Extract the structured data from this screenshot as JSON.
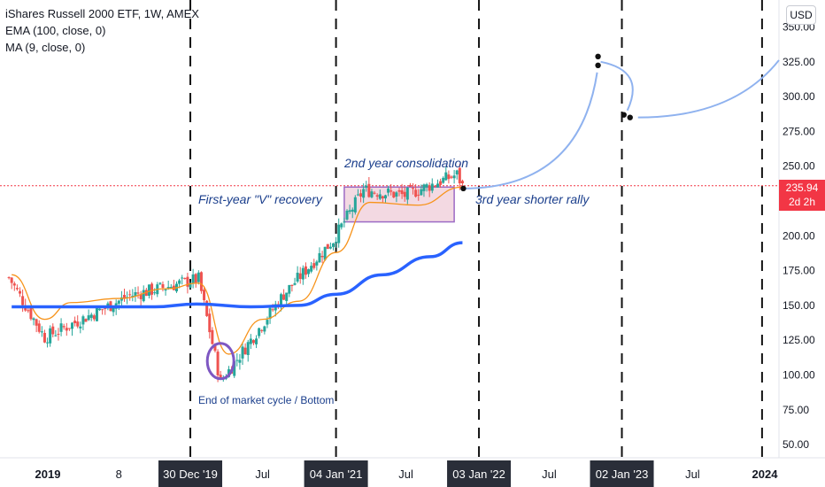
{
  "header": {
    "symbol_line": "iShares Russell 2000 ETF, 1W, AMEX",
    "indicator_1": "EMA (100, close, 0)",
    "indicator_2": "MA (9, close, 0)",
    "currency": "USD"
  },
  "price_tag": {
    "price": "235.94",
    "countdown": "2d 2h",
    "color": "#f23645"
  },
  "annotations": {
    "v_recovery": "First-year \"V\" recovery",
    "consolidation": "2nd year consolidation",
    "shorter_rally": "3rd year shorter rally",
    "bottom": "End of market cycle / Bottom"
  },
  "colors": {
    "up": "#26a69a",
    "down": "#ef5350",
    "ema": "#2962ff",
    "ma": "#f7931a",
    "projection": "#8fb2ef",
    "annotation": "#1a3e8c",
    "circle": "#7e57c2",
    "box_fill": "#f3d9e2",
    "box_stroke": "#9c6ac4"
  },
  "chart_data": {
    "type": "candlestick",
    "title": "iShares Russell 2000 ETF, 1W, AMEX",
    "ylim": [
      40,
      355
    ],
    "y_ticks": [
      50,
      75,
      100,
      125,
      150,
      175,
      200,
      225,
      250,
      275,
      300,
      325,
      350
    ],
    "y_tick_labels": [
      "50.00",
      "75.00",
      "100.00",
      "125.00",
      "150.00",
      "175.00",
      "200.00",
      "225.00",
      "250.00",
      "275.00",
      "300.00",
      "325.00",
      "350.00"
    ],
    "x_tick_labels": [
      "2019",
      "8",
      "30 Dec '19",
      "Jul",
      "04 Jan '21",
      "Jul",
      "03 Jan '22",
      "Jul",
      "02 Jan '23",
      "Jul",
      "2024"
    ],
    "x_tick_dates": [
      "2019-01-01",
      "2019-07-01",
      "2019-12-30",
      "2020-07-01",
      "2021-01-04",
      "2021-07-01",
      "2022-01-03",
      "2022-07-01",
      "2023-01-02",
      "2023-07-01",
      "2024-01-01"
    ],
    "highlighted_x_labels": [
      "30 Dec '19",
      "04 Jan '21",
      "03 Jan '22",
      "02 Jan '23"
    ],
    "last_price": 235.94,
    "key_prices": [
      {
        "date": "2018-12-24",
        "price": 127
      },
      {
        "date": "2019-07-29",
        "price": 157
      },
      {
        "date": "2020-01-20",
        "price": 169
      },
      {
        "date": "2020-03-16",
        "price": 95
      },
      {
        "date": "2020-08-24",
        "price": 158
      },
      {
        "date": "2020-12-28",
        "price": 197
      },
      {
        "date": "2021-03-15",
        "price": 233
      },
      {
        "date": "2021-06-28",
        "price": 229
      },
      {
        "date": "2021-11-08",
        "price": 244
      },
      {
        "date": "2021-11-22",
        "price": 235.94
      }
    ],
    "series": [
      {
        "name": "EMA (100, close, 0)",
        "values": [
          {
            "date": "2018-10-01",
            "y": 149
          },
          {
            "date": "2019-04-01",
            "y": 149
          },
          {
            "date": "2019-10-01",
            "y": 149
          },
          {
            "date": "2020-01-15",
            "y": 151
          },
          {
            "date": "2020-06-01",
            "y": 149
          },
          {
            "date": "2020-10-01",
            "y": 150
          },
          {
            "date": "2021-01-04",
            "y": 158
          },
          {
            "date": "2021-05-01",
            "y": 172
          },
          {
            "date": "2021-09-01",
            "y": 185
          },
          {
            "date": "2021-11-22",
            "y": 195
          }
        ]
      },
      {
        "name": "MA (9, close, 0)",
        "values": [
          {
            "date": "2018-10-01",
            "y": 172
          },
          {
            "date": "2018-12-24",
            "y": 140
          },
          {
            "date": "2019-03-01",
            "y": 152
          },
          {
            "date": "2019-07-01",
            "y": 155
          },
          {
            "date": "2019-11-01",
            "y": 162
          },
          {
            "date": "2020-01-20",
            "y": 166
          },
          {
            "date": "2020-04-06",
            "y": 115
          },
          {
            "date": "2020-07-01",
            "y": 140
          },
          {
            "date": "2020-10-01",
            "y": 153
          },
          {
            "date": "2021-01-04",
            "y": 188
          },
          {
            "date": "2021-04-01",
            "y": 224
          },
          {
            "date": "2021-08-01",
            "y": 222
          },
          {
            "date": "2021-11-22",
            "y": 235
          }
        ]
      },
      {
        "name": "Projection",
        "values": [
          {
            "date": "2021-11-22",
            "y": 234
          },
          {
            "date": "2022-10-31",
            "y": 325
          },
          {
            "date": "2023-01-16",
            "y": 285
          },
          {
            "date": "2024-01-01",
            "y": 330
          }
        ]
      }
    ],
    "consolidation_range": {
      "start": "2021-01-25",
      "end": "2021-11-01",
      "low": 210,
      "high": 235
    },
    "grid": false,
    "legend": "top-left"
  }
}
